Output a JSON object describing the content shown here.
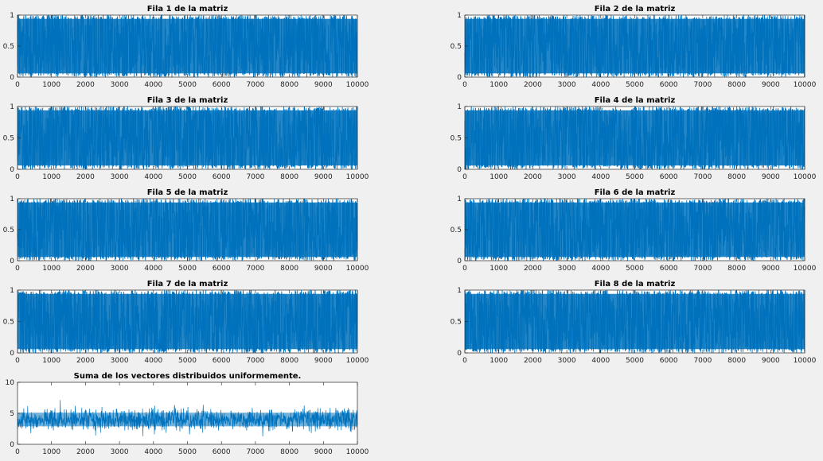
{
  "chart_data": [
    {
      "type": "line",
      "title": "Fila 1 de la matriz",
      "xlim": [
        0,
        10000
      ],
      "ylim": [
        0,
        1
      ],
      "xticks": [
        "0",
        "1000",
        "2000",
        "3000",
        "4000",
        "5000",
        "6000",
        "7000",
        "8000",
        "9000",
        "10000"
      ],
      "yticks": [
        "0",
        "0.5",
        "1"
      ],
      "series_color": "#0072bd",
      "n_points": 10000,
      "distribution": "uniform(0,1)"
    },
    {
      "type": "line",
      "title": "Fila 2 de la matriz",
      "xlim": [
        0,
        10000
      ],
      "ylim": [
        0,
        1
      ],
      "xticks": [
        "0",
        "1000",
        "2000",
        "3000",
        "4000",
        "5000",
        "6000",
        "7000",
        "8000",
        "9000",
        "10000"
      ],
      "yticks": [
        "0",
        "0.5",
        "1"
      ],
      "series_color": "#0072bd",
      "n_points": 10000,
      "distribution": "uniform(0,1)"
    },
    {
      "type": "line",
      "title": "Fila 3 de la matriz",
      "xlim": [
        0,
        10000
      ],
      "ylim": [
        0,
        1
      ],
      "xticks": [
        "0",
        "1000",
        "2000",
        "3000",
        "4000",
        "5000",
        "6000",
        "7000",
        "8000",
        "9000",
        "10000"
      ],
      "yticks": [
        "0",
        "0.5",
        "1"
      ],
      "series_color": "#0072bd",
      "n_points": 10000,
      "distribution": "uniform(0,1)"
    },
    {
      "type": "line",
      "title": "Fila 4 de la matriz",
      "xlim": [
        0,
        10000
      ],
      "ylim": [
        0,
        1
      ],
      "xticks": [
        "0",
        "1000",
        "2000",
        "3000",
        "4000",
        "5000",
        "6000",
        "7000",
        "8000",
        "9000",
        "10000"
      ],
      "yticks": [
        "0",
        "0.5",
        "1"
      ],
      "series_color": "#0072bd",
      "n_points": 10000,
      "distribution": "uniform(0,1)"
    },
    {
      "type": "line",
      "title": "Fila 5 de la matriz",
      "xlim": [
        0,
        10000
      ],
      "ylim": [
        0,
        1
      ],
      "xticks": [
        "0",
        "1000",
        "2000",
        "3000",
        "4000",
        "5000",
        "6000",
        "7000",
        "8000",
        "9000",
        "10000"
      ],
      "yticks": [
        "0",
        "0.5",
        "1"
      ],
      "series_color": "#0072bd",
      "n_points": 10000,
      "distribution": "uniform(0,1)"
    },
    {
      "type": "line",
      "title": "Fila 6 de la matriz",
      "xlim": [
        0,
        10000
      ],
      "ylim": [
        0,
        1
      ],
      "xticks": [
        "0",
        "1000",
        "2000",
        "3000",
        "4000",
        "5000",
        "6000",
        "7000",
        "8000",
        "9000",
        "10000"
      ],
      "yticks": [
        "0",
        "0.5",
        "1"
      ],
      "series_color": "#0072bd",
      "n_points": 10000,
      "distribution": "uniform(0,1)"
    },
    {
      "type": "line",
      "title": "Fila 7 de la matriz",
      "xlim": [
        0,
        10000
      ],
      "ylim": [
        0,
        1
      ],
      "xticks": [
        "0",
        "1000",
        "2000",
        "3000",
        "4000",
        "5000",
        "6000",
        "7000",
        "8000",
        "9000",
        "10000"
      ],
      "yticks": [
        "0",
        "0.5",
        "1"
      ],
      "series_color": "#0072bd",
      "n_points": 10000,
      "distribution": "uniform(0,1)"
    },
    {
      "type": "line",
      "title": "Fila 8 de la matriz",
      "xlim": [
        0,
        10000
      ],
      "ylim": [
        0,
        1
      ],
      "xticks": [
        "0",
        "1000",
        "2000",
        "3000",
        "4000",
        "5000",
        "6000",
        "7000",
        "8000",
        "9000",
        "10000"
      ],
      "yticks": [
        "0",
        "0.5",
        "1"
      ],
      "series_color": "#0072bd",
      "n_points": 10000,
      "distribution": "uniform(0,1)"
    },
    {
      "type": "line",
      "title": "Suma de los vectores distribuidos uniformemente.",
      "xlim": [
        0,
        10000
      ],
      "ylim": [
        0,
        10
      ],
      "xticks": [
        "0",
        "1000",
        "2000",
        "3000",
        "4000",
        "5000",
        "6000",
        "7000",
        "8000",
        "9000",
        "10000"
      ],
      "yticks": [
        "0",
        "5",
        "10"
      ],
      "series_color": "#0072bd",
      "n_points": 10000,
      "distribution": "sum of 8 uniform(0,1)"
    }
  ]
}
